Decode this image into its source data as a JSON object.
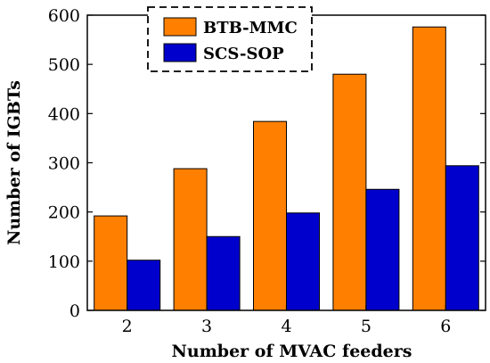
{
  "chart_data": {
    "type": "bar",
    "categories": [
      "2",
      "3",
      "4",
      "5",
      "6"
    ],
    "series": [
      {
        "name": "BTB-MMC",
        "values": [
          192,
          288,
          384,
          480,
          576
        ],
        "color": "#ff8000"
      },
      {
        "name": "SCS-SOP",
        "values": [
          102,
          150,
          198,
          246,
          294
        ],
        "color": "#0000cc"
      }
    ],
    "xlabel": "Number of MVAC feeders",
    "ylabel": "Number of IGBTs",
    "ylim": [
      0,
      600
    ],
    "yticks": [
      0,
      100,
      200,
      300,
      400,
      500,
      600
    ],
    "grid": false,
    "legend": {
      "placement": "top-center",
      "border": "dashed"
    }
  }
}
